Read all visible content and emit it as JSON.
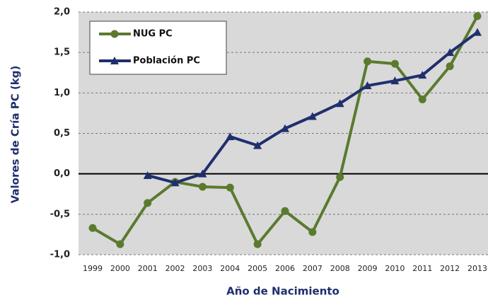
{
  "chart_data": {
    "type": "line",
    "xlabel": "Año de Nacimiento",
    "ylabel": "Valores de Cría PC (kg)",
    "categories": [
      "1999",
      "2000",
      "2001",
      "2002",
      "2003",
      "2004",
      "2005",
      "2006",
      "2007",
      "2008",
      "2009",
      "2010",
      "2011",
      "2012",
      "2013"
    ],
    "series": [
      {
        "name": "NUG PC",
        "color": "#5b7a2e",
        "marker": "circle",
        "values": [
          -0.67,
          -0.87,
          -0.36,
          -0.1,
          -0.16,
          -0.17,
          -0.87,
          -0.46,
          -0.72,
          -0.04,
          1.39,
          1.36,
          0.92,
          1.33,
          1.95
        ]
      },
      {
        "name": "Población PC",
        "color": "#1f2f6e",
        "marker": "triangle",
        "values": [
          null,
          null,
          -0.02,
          -0.11,
          0.0,
          0.46,
          0.35,
          0.56,
          0.71,
          0.87,
          1.09,
          1.15,
          1.22,
          1.5,
          1.75
        ]
      }
    ],
    "ylim": [
      -1.0,
      2.0
    ],
    "yticks": [
      {
        "value": -1.0,
        "label": "-1,0"
      },
      {
        "value": -0.5,
        "label": "-0,5"
      },
      {
        "value": 0.0,
        "label": "0,0"
      },
      {
        "value": 0.5,
        "label": "0,5"
      },
      {
        "value": 1.0,
        "label": "1,0"
      },
      {
        "value": 1.5,
        "label": "1,5"
      },
      {
        "value": 2.0,
        "label": "2,0"
      }
    ],
    "grid": true,
    "legend": "upper left"
  }
}
